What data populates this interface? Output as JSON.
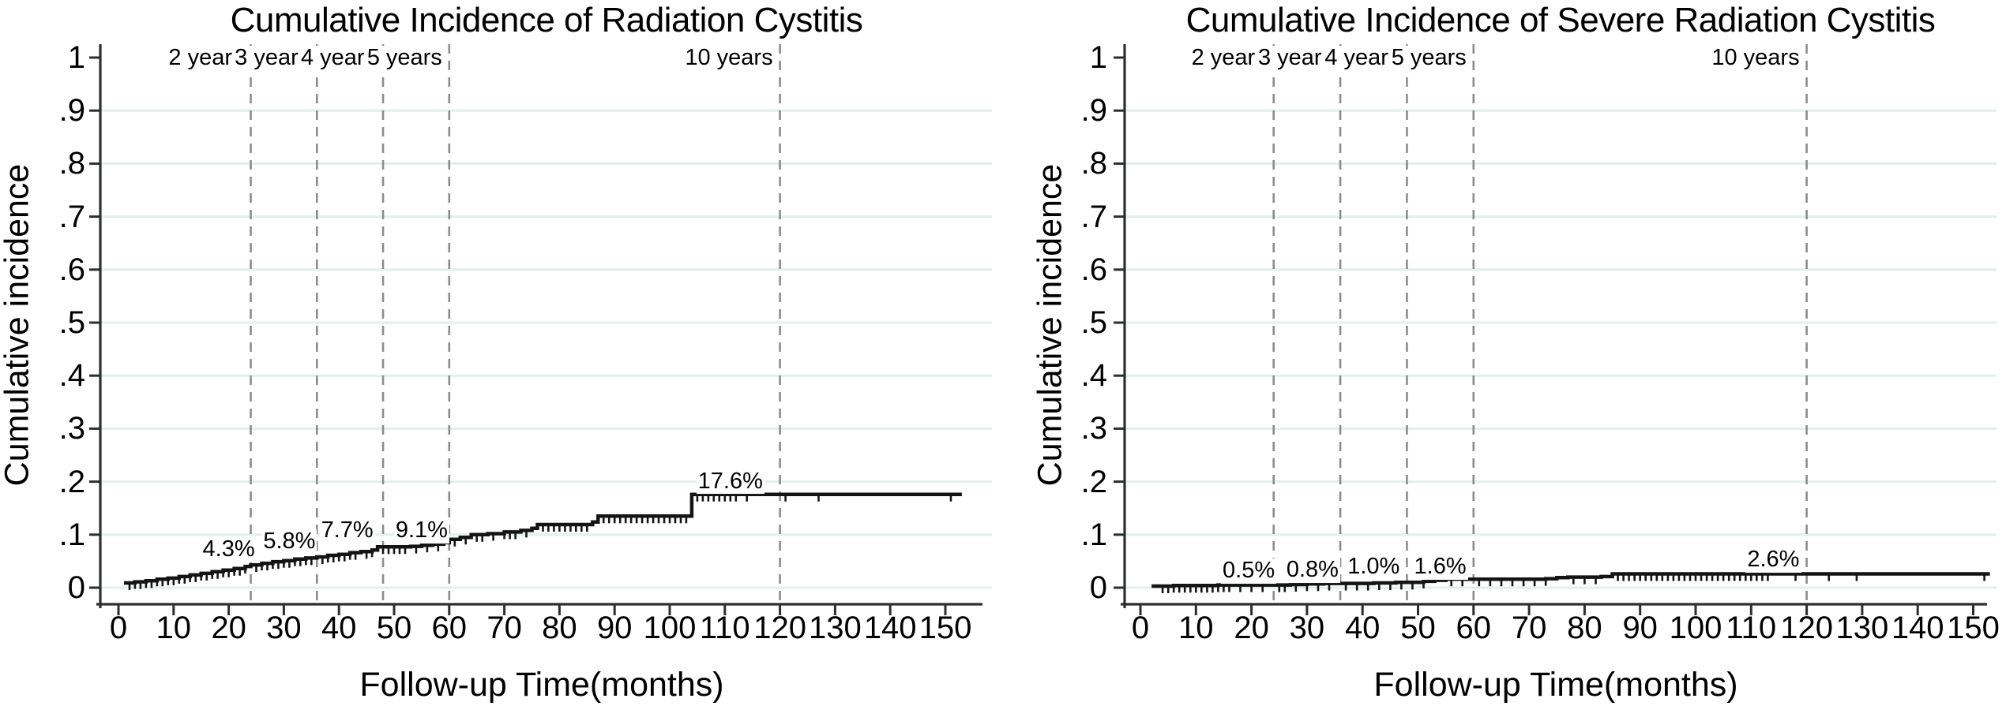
{
  "figure": {
    "background": "#ffffff"
  },
  "style": {
    "curve_color": "#141414",
    "grid_color": "#e4eeec",
    "dashed_line_color": "#8c8c8c",
    "axis_color": "#2e2e2e",
    "text_color": "#000000"
  },
  "chart_data": [
    {
      "type": "line",
      "chart_kind": "cumulative-incidence-step-plot",
      "title": "Cumulative Incidence of Radiation Cystitis",
      "xlabel": "Follow-up Time(months)",
      "ylabel": "Cumulative incidence",
      "xlim": [
        0,
        155
      ],
      "ylim": [
        0,
        1
      ],
      "grid": "horizontal",
      "x_ticks": [
        0,
        10,
        20,
        30,
        40,
        50,
        60,
        70,
        80,
        90,
        100,
        110,
        120,
        130,
        140,
        150
      ],
      "y_ticks": [
        {
          "v": 0.0,
          "label": "0"
        },
        {
          "v": 0.1,
          "label": ".1"
        },
        {
          "v": 0.2,
          "label": ".2"
        },
        {
          "v": 0.3,
          "label": ".3"
        },
        {
          "v": 0.4,
          "label": ".4"
        },
        {
          "v": 0.5,
          "label": ".5"
        },
        {
          "v": 0.6,
          "label": ".6"
        },
        {
          "v": 0.7,
          "label": ".7"
        },
        {
          "v": 0.8,
          "label": ".8"
        },
        {
          "v": 0.9,
          "label": ".9"
        },
        {
          "v": 1.0,
          "label": "1"
        }
      ],
      "reference_lines": [
        {
          "month": 24,
          "label": "2 years"
        },
        {
          "month": 36,
          "label": "3 years"
        },
        {
          "month": 48,
          "label": "4 years"
        },
        {
          "month": 60,
          "label": "5 years"
        },
        {
          "month": 120,
          "label": "10 years"
        }
      ],
      "annotations": [
        {
          "label": "4.3%",
          "month": 20,
          "value": 0.071
        },
        {
          "label": "5.8%",
          "month": 31,
          "value": 0.086
        },
        {
          "label": "7.7%",
          "month": 41.5,
          "value": 0.107
        },
        {
          "label": "9.1%",
          "month": 55,
          "value": 0.107
        },
        {
          "label": "17.6%",
          "month": 111,
          "value": 0.2
        }
      ],
      "series": [
        {
          "name": "Radiation cystitis",
          "steps": [
            [
              1,
              0.009
            ],
            [
              3,
              0.011
            ],
            [
              5,
              0.013
            ],
            [
              7,
              0.016
            ],
            [
              9,
              0.018
            ],
            [
              11,
              0.021
            ],
            [
              13,
              0.024
            ],
            [
              15,
              0.027
            ],
            [
              17,
              0.03
            ],
            [
              19,
              0.033
            ],
            [
              21,
              0.036
            ],
            [
              23,
              0.04
            ],
            [
              24,
              0.043
            ],
            [
              26,
              0.046
            ],
            [
              28,
              0.049
            ],
            [
              30,
              0.051
            ],
            [
              32,
              0.054
            ],
            [
              34,
              0.056
            ],
            [
              36,
              0.058
            ],
            [
              38,
              0.061
            ],
            [
              40,
              0.063
            ],
            [
              42,
              0.066
            ],
            [
              44,
              0.068
            ],
            [
              46,
              0.071
            ],
            [
              47,
              0.077
            ],
            [
              53,
              0.078
            ],
            [
              55,
              0.08
            ],
            [
              57,
              0.082
            ],
            [
              59,
              0.085
            ],
            [
              60,
              0.091
            ],
            [
              62,
              0.095
            ],
            [
              64,
              0.1
            ],
            [
              67,
              0.102
            ],
            [
              70,
              0.105
            ],
            [
              73,
              0.108
            ],
            [
              75,
              0.112
            ],
            [
              76,
              0.119
            ],
            [
              86,
              0.124
            ],
            [
              87,
              0.135
            ],
            [
              104,
              0.176
            ],
            [
              153,
              0.176
            ]
          ]
        }
      ],
      "censor_marks": [
        2,
        3,
        4,
        5,
        6,
        7,
        8,
        9,
        10,
        11,
        12,
        13,
        14,
        15,
        16,
        17,
        18,
        19,
        20,
        21,
        22,
        23,
        25,
        26,
        27,
        28,
        29,
        30,
        31,
        32,
        33,
        34,
        35,
        37,
        38,
        39,
        40,
        41,
        42,
        43,
        45,
        46,
        48,
        49,
        50,
        51,
        52,
        54,
        56,
        58,
        61,
        63,
        65,
        66,
        68,
        70,
        71,
        72,
        74,
        77,
        78,
        79,
        80,
        81,
        82,
        83,
        84,
        85,
        88,
        89,
        90,
        91,
        92,
        93,
        94,
        95,
        96,
        97,
        98,
        99,
        100,
        101,
        102,
        103,
        105,
        106,
        107,
        108,
        109,
        110,
        111,
        112,
        114,
        121,
        127,
        151
      ]
    },
    {
      "type": "line",
      "chart_kind": "cumulative-incidence-step-plot",
      "title": "Cumulative Incidence of Severe Radiation Cystitis",
      "xlabel": "Follow-up Time(months)",
      "ylabel": "Cumulative incidence",
      "xlim": [
        0,
        155
      ],
      "ylim": [
        0,
        1
      ],
      "grid": "horizontal",
      "x_ticks": [
        0,
        10,
        20,
        30,
        40,
        50,
        60,
        70,
        80,
        90,
        100,
        110,
        120,
        130,
        140,
        150
      ],
      "y_ticks": [
        {
          "v": 0.0,
          "label": "0"
        },
        {
          "v": 0.1,
          "label": ".1"
        },
        {
          "v": 0.2,
          "label": ".2"
        },
        {
          "v": 0.3,
          "label": ".3"
        },
        {
          "v": 0.4,
          "label": ".4"
        },
        {
          "v": 0.5,
          "label": ".5"
        },
        {
          "v": 0.6,
          "label": ".6"
        },
        {
          "v": 0.7,
          "label": ".7"
        },
        {
          "v": 0.8,
          "label": ".8"
        },
        {
          "v": 0.9,
          "label": ".9"
        },
        {
          "v": 1.0,
          "label": "1"
        }
      ],
      "reference_lines": [
        {
          "month": 24,
          "label": "2 years"
        },
        {
          "month": 36,
          "label": "3 years"
        },
        {
          "month": 48,
          "label": "4 years"
        },
        {
          "month": 60,
          "label": "5 years"
        },
        {
          "month": 120,
          "label": "10 years"
        }
      ],
      "annotations": [
        {
          "label": "0.5%",
          "month": 19.5,
          "value": 0.031
        },
        {
          "label": "0.8%",
          "month": 31,
          "value": 0.032
        },
        {
          "label": "1.0%",
          "month": 42,
          "value": 0.039
        },
        {
          "label": "1.6%",
          "month": 54,
          "value": 0.039
        },
        {
          "label": "2.6%",
          "month": 114,
          "value": 0.052
        }
      ],
      "series": [
        {
          "name": "Severe radiation cystitis",
          "steps": [
            [
              2,
              0.003
            ],
            [
              6,
              0.004
            ],
            [
              14,
              0.005
            ],
            [
              24,
              0.005
            ],
            [
              27,
              0.006
            ],
            [
              30,
              0.007
            ],
            [
              33,
              0.008
            ],
            [
              36,
              0.008
            ],
            [
              42,
              0.009
            ],
            [
              46,
              0.01
            ],
            [
              48,
              0.01
            ],
            [
              51,
              0.012
            ],
            [
              53,
              0.014
            ],
            [
              55,
              0.016
            ],
            [
              60,
              0.016
            ],
            [
              73,
              0.017
            ],
            [
              75,
              0.019
            ],
            [
              77,
              0.02
            ],
            [
              83,
              0.021
            ],
            [
              85,
              0.026
            ],
            [
              153,
              0.026
            ]
          ]
        }
      ],
      "censor_marks": [
        4,
        5,
        6,
        7,
        8,
        9,
        10,
        11,
        12,
        13,
        14,
        15,
        16,
        18,
        20,
        22,
        25,
        26,
        28,
        30,
        32,
        34,
        37,
        39,
        41,
        43,
        45,
        47,
        49,
        51,
        56,
        58,
        61,
        63,
        65,
        67,
        69,
        71,
        73,
        78,
        80,
        82,
        86,
        87,
        88,
        89,
        90,
        91,
        92,
        93,
        94,
        95,
        96,
        97,
        98,
        99,
        100,
        101,
        102,
        103,
        104,
        105,
        106,
        107,
        108,
        109,
        110,
        111,
        112,
        113,
        118,
        124,
        129,
        152
      ]
    }
  ]
}
